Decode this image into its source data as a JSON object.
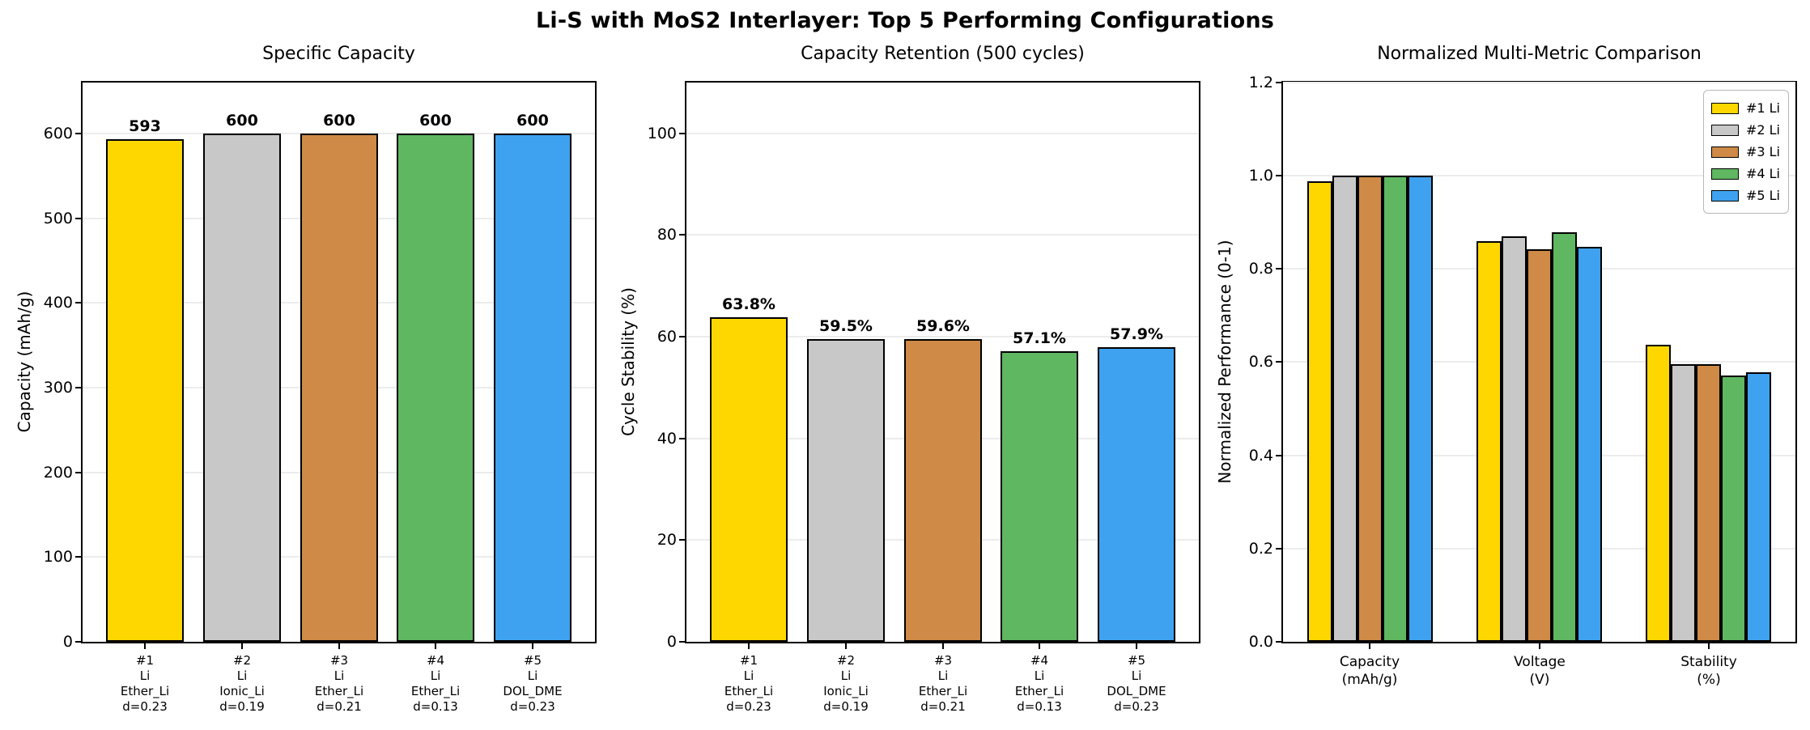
{
  "title": "Li-S with MoS2 Interlayer: Top 5 Performing Configurations",
  "palette": [
    "#FFD700",
    "#C8C8C8",
    "#CE8A46",
    "#5FB761",
    "#3FA2F0"
  ],
  "chart_data": [
    {
      "type": "bar",
      "title": "Specific Capacity",
      "ylabel": "Capacity (mAh/g)",
      "categories": [
        [
          "#1",
          "Li",
          "Ether_Li",
          "d=0.23"
        ],
        [
          "#2",
          "Li",
          "Ionic_Li",
          "d=0.19"
        ],
        [
          "#3",
          "Li",
          "Ether_Li",
          "d=0.21"
        ],
        [
          "#4",
          "Li",
          "Ether_Li",
          "d=0.13"
        ],
        [
          "#5",
          "Li",
          "DOL_DME",
          "d=0.23"
        ]
      ],
      "values": [
        593,
        600,
        600,
        600,
        600
      ],
      "bar_labels": [
        "593",
        "600",
        "600",
        "600",
        "600"
      ],
      "bar_colors": [
        "#FFD700",
        "#C8C8C8",
        "#CE8A46",
        "#5FB761",
        "#3FA2F0"
      ],
      "yticks": [
        "0",
        "100",
        "200",
        "300",
        "400",
        "500",
        "600"
      ],
      "ylim": [
        0,
        660
      ],
      "grid": true
    },
    {
      "type": "bar",
      "title": "Capacity Retention (500 cycles)",
      "ylabel": "Cycle Stability (%)",
      "categories": [
        [
          "#1",
          "Li",
          "Ether_Li",
          "d=0.23"
        ],
        [
          "#2",
          "Li",
          "Ionic_Li",
          "d=0.19"
        ],
        [
          "#3",
          "Li",
          "Ether_Li",
          "d=0.21"
        ],
        [
          "#4",
          "Li",
          "Ether_Li",
          "d=0.13"
        ],
        [
          "#5",
          "Li",
          "DOL_DME",
          "d=0.23"
        ]
      ],
      "values": [
        63.8,
        59.5,
        59.6,
        57.1,
        57.9
      ],
      "bar_labels": [
        "63.8%",
        "59.5%",
        "59.6%",
        "57.1%",
        "57.9%"
      ],
      "bar_colors": [
        "#FFD700",
        "#C8C8C8",
        "#CE8A46",
        "#5FB761",
        "#3FA2F0"
      ],
      "yticks": [
        "0",
        "20",
        "40",
        "60",
        "80",
        "100"
      ],
      "ylim": [
        0,
        110
      ],
      "grid": true
    },
    {
      "type": "bar",
      "title": "Normalized Multi-Metric Comparison",
      "ylabel": "Normalized Performance (0-1)",
      "categories": [
        [
          "Capacity",
          "(mAh/g)"
        ],
        [
          "Voltage",
          "(V)"
        ],
        [
          "Stability",
          "(%)"
        ]
      ],
      "series": [
        {
          "name": "#1 Li",
          "color": "#FFD700",
          "values": [
            0.988,
            0.86,
            0.638
          ]
        },
        {
          "name": "#2 Li",
          "color": "#C8C8C8",
          "values": [
            1.0,
            0.87,
            0.595
          ]
        },
        {
          "name": "#3 Li",
          "color": "#CE8A46",
          "values": [
            1.0,
            0.843,
            0.596
          ]
        },
        {
          "name": "#4 Li",
          "color": "#5FB761",
          "values": [
            1.0,
            0.878,
            0.571
          ]
        },
        {
          "name": "#5 Li",
          "color": "#3FA2F0",
          "values": [
            1.0,
            0.848,
            0.579
          ]
        }
      ],
      "yticks": [
        "0.0",
        "0.2",
        "0.4",
        "0.6",
        "0.8",
        "1.0",
        "1.2"
      ],
      "ylim": [
        0,
        1.2
      ],
      "grid": true,
      "legend_position": "upper right"
    }
  ]
}
